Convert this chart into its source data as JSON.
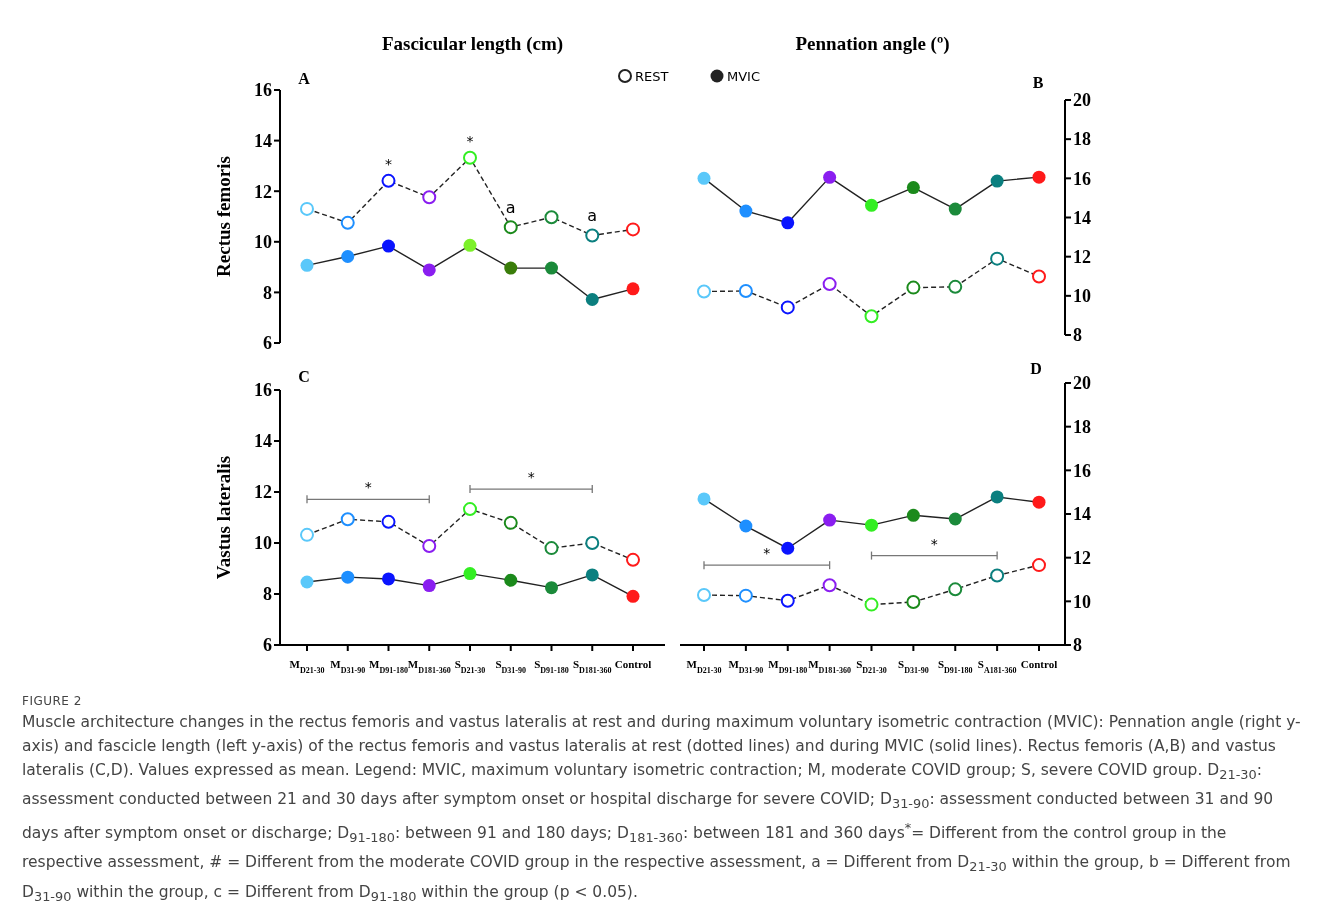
{
  "chart_data": [
    {
      "type": "line",
      "title": "Fascicular length (cm)",
      "ylabel": "Rectus femoris",
      "categories": [
        "M$_{D21-30}$",
        "M$_{D31-90}$",
        "M$_{D91-180}$",
        "M$_{D181-360}$",
        "S$_{D21-30}$",
        "S$_{D31-90}$",
        "S$_{D91-180}$",
        "S$_{D181-360}$",
        "Control"
      ],
      "ylim": [
        6,
        16
      ],
      "yticks": [
        6,
        8,
        10,
        12,
        14,
        16
      ],
      "tick_labels": "y",
      "legend": "top right",
      "marker": "circle",
      "series": [
        {
          "name": "REST",
          "color": "#222222",
          "line_style": "dashed",
          "colors": [
            "#5ac8fa",
            "#1e8fff",
            "#0a14ff",
            "#8a1ef0",
            "#33ee22",
            "#1b8a1b",
            "#1b8a3a",
            "#0b7f7f",
            "#ff1a1a"
          ],
          "values": [
            11.3,
            10.75,
            12.41,
            11.76,
            13.32,
            10.58,
            10.97,
            10.25,
            10.49
          ]
        },
        {
          "name": "MVIC",
          "color": "#222222",
          "line_style": "solid",
          "colors": [
            "#5ac8fa",
            "#1e8fff",
            "#0a14ff",
            "#8a1ef0",
            "#7cf02a",
            "#3a7d0a",
            "#1b8a3a",
            "#0b7f7f",
            "#ff1a1a"
          ],
          "values": [
            9.07,
            9.42,
            9.83,
            8.89,
            9.86,
            8.96,
            8.96,
            7.72,
            8.14
          ]
        }
      ],
      "annotations": [
        "A",
        {
          "text": "*",
          "x": "M$_{D91-180}$",
          "y": 12.41
        },
        {
          "text": "*",
          "x": "S$_{D21-30}$",
          "y": 13.32
        },
        {
          "text": "a",
          "x": "S$_{D31-90}$",
          "y": 10.58
        },
        {
          "text": "a",
          "x": "S$_{D181-360}$",
          "y": 10.25
        }
      ]
    },
    {
      "type": "line",
      "title": "Pennation angle (º)",
      "categories": [
        "M$_{D21-30}$",
        "M$_{D31-90}$",
        "M$_{D91-180}$",
        "M$_{D181-360}$",
        "S$_{D21-30}$",
        "S$_{D31-90}$",
        "S$_{D91-180}$",
        "S$_{A181-360}$",
        "Control"
      ],
      "y2lim": [
        8,
        20
      ],
      "y2ticks": [
        8,
        10,
        12,
        14,
        16,
        18,
        20
      ],
      "tick_labels": "y",
      "marker": "circle",
      "series": [
        {
          "axis": "y2",
          "color": "#222222",
          "line_style": "dashed",
          "colors": [
            "#5ac8fa",
            "#1e8fff",
            "#0a14ff",
            "#8a1ef0",
            "#33ee22",
            "#1b8a1b",
            "#1b8a3a",
            "#0b7f7f",
            "#ff1a1a"
          ],
          "values": [
            10.22,
            10.25,
            9.41,
            10.6,
            8.96,
            10.42,
            10.46,
            11.9,
            10.99
          ]
        },
        {
          "axis": "y2",
          "color": "#222222",
          "line_style": "solid",
          "colors": [
            "#5ac8fa",
            "#1e8fff",
            "#0a14ff",
            "#8a1ef0",
            "#33ee22",
            "#1b8a1b",
            "#1b8a3a",
            "#0b7f7f",
            "#ff1a1a"
          ],
          "values": [
            16.0,
            14.33,
            13.73,
            16.05,
            14.62,
            15.53,
            14.43,
            15.86,
            16.06
          ]
        }
      ],
      "annotations": [
        "B"
      ]
    },
    {
      "type": "line",
      "ylabel": "Vastus lateralis",
      "categories": [
        "M$_{D21-30}$",
        "M$_{D31-90}$",
        "M$_{D91-180}$",
        "M$_{D181-360}$",
        "S$_{D21-30}$",
        "S$_{D31-90}$",
        "S$_{D91-180}$",
        "S$_{D181-360}$",
        "Control"
      ],
      "ylim": [
        6,
        16
      ],
      "yticks": [
        6,
        8,
        10,
        12,
        14,
        16
      ],
      "marker": "circle",
      "series": [
        {
          "color": "#222222",
          "line_style": "dashed",
          "colors": [
            "#5ac8fa",
            "#1e8fff",
            "#0a14ff",
            "#8a1ef0",
            "#33ee22",
            "#1b8a1b",
            "#1b8a3a",
            "#0b7f7f",
            "#ff1a1a"
          ],
          "values": [
            10.32,
            10.93,
            10.83,
            9.88,
            11.33,
            10.79,
            9.8,
            10.0,
            9.34
          ]
        },
        {
          "color": "#222222",
          "line_style": "solid",
          "colors": [
            "#5ac8fa",
            "#1e8fff",
            "#0a14ff",
            "#8a1ef0",
            "#33ee22",
            "#1b8a1b",
            "#1b8a3a",
            "#0b7f7f",
            "#ff1a1a"
          ],
          "values": [
            8.47,
            8.66,
            8.59,
            8.33,
            8.8,
            8.54,
            8.25,
            8.75,
            7.91
          ]
        }
      ],
      "annotations": [
        "C",
        "*",
        "*"
      ]
    },
    {
      "type": "line",
      "categories": [
        "M$_{D21-30}$",
        "M$_{D31-90}$",
        "M$_{D91-180}$",
        "M$_{D181-360}$",
        "S$_{D21-30}$",
        "S$_{D31-90}$",
        "S$_{D91-180}$",
        "S$_{A181-360}$",
        "Control"
      ],
      "y2lim": [
        8,
        20
      ],
      "y2ticks": [
        8,
        10,
        12,
        14,
        16,
        18,
        20
      ],
      "marker": "circle",
      "series": [
        {
          "axis": "y2",
          "color": "#222222",
          "line_style": "dashed",
          "colors": [
            "#5ac8fa",
            "#1e8fff",
            "#0a14ff",
            "#8a1ef0",
            "#33ee22",
            "#1b8a1b",
            "#1b8a3a",
            "#0b7f7f",
            "#ff1a1a"
          ],
          "values": [
            10.29,
            10.26,
            10.03,
            10.74,
            9.85,
            9.97,
            10.55,
            11.18,
            11.66
          ]
        },
        {
          "axis": "y2",
          "color": "#222222",
          "line_style": "solid",
          "colors": [
            "#5ac8fa",
            "#1e8fff",
            "#0a14ff",
            "#8a1ef0",
            "#33ee22",
            "#1b8a1b",
            "#1b8a3a",
            "#0b7f7f",
            "#ff1a1a"
          ],
          "values": [
            14.69,
            13.45,
            12.43,
            13.72,
            13.49,
            13.94,
            13.77,
            14.78,
            14.54
          ]
        }
      ],
      "annotations": [
        "D",
        "*",
        "*",
        "FIGURE 2",
        "Muscle architecture changes in the rectus femoris and vastus lateralis at rest and during maximum voluntary isometric contraction (MVIC): Pennation angle (right y-axis) and fascicle length (left y-axis) of the rectus femoris and vastus lateralis at rest (dotted lines) and during MVIC (solid lines). Rectus femoris (A,B) and vastus lateralis (C,D). Values expressed as mean. Legend: MVIC, maximum voluntary isometric contraction; M, moderate COVID group; S, severe COVID group. D$_{21-30}$: assessment conducted between 21 and 30 days after symptom onset or hospital discharge for severe COVID; D$_{31-90}$: assessment conducted between 31 and 90 days after symptom onset or discharge; D$_{91-180}$: between 91 and 180 days; D$_{181-360}$: between 181 and 360 days$^{*}$= Different from the control group in the respective assessment, # = Different from the moderate COVID group in the respective assessment, a = Different from D$_{21-30}$ within the group, b = Different from D$_{31-90}$ within the group, c = Different from D$_{91-180}$ within the group (p < 0.05)."
      ]
    }
  ]
}
